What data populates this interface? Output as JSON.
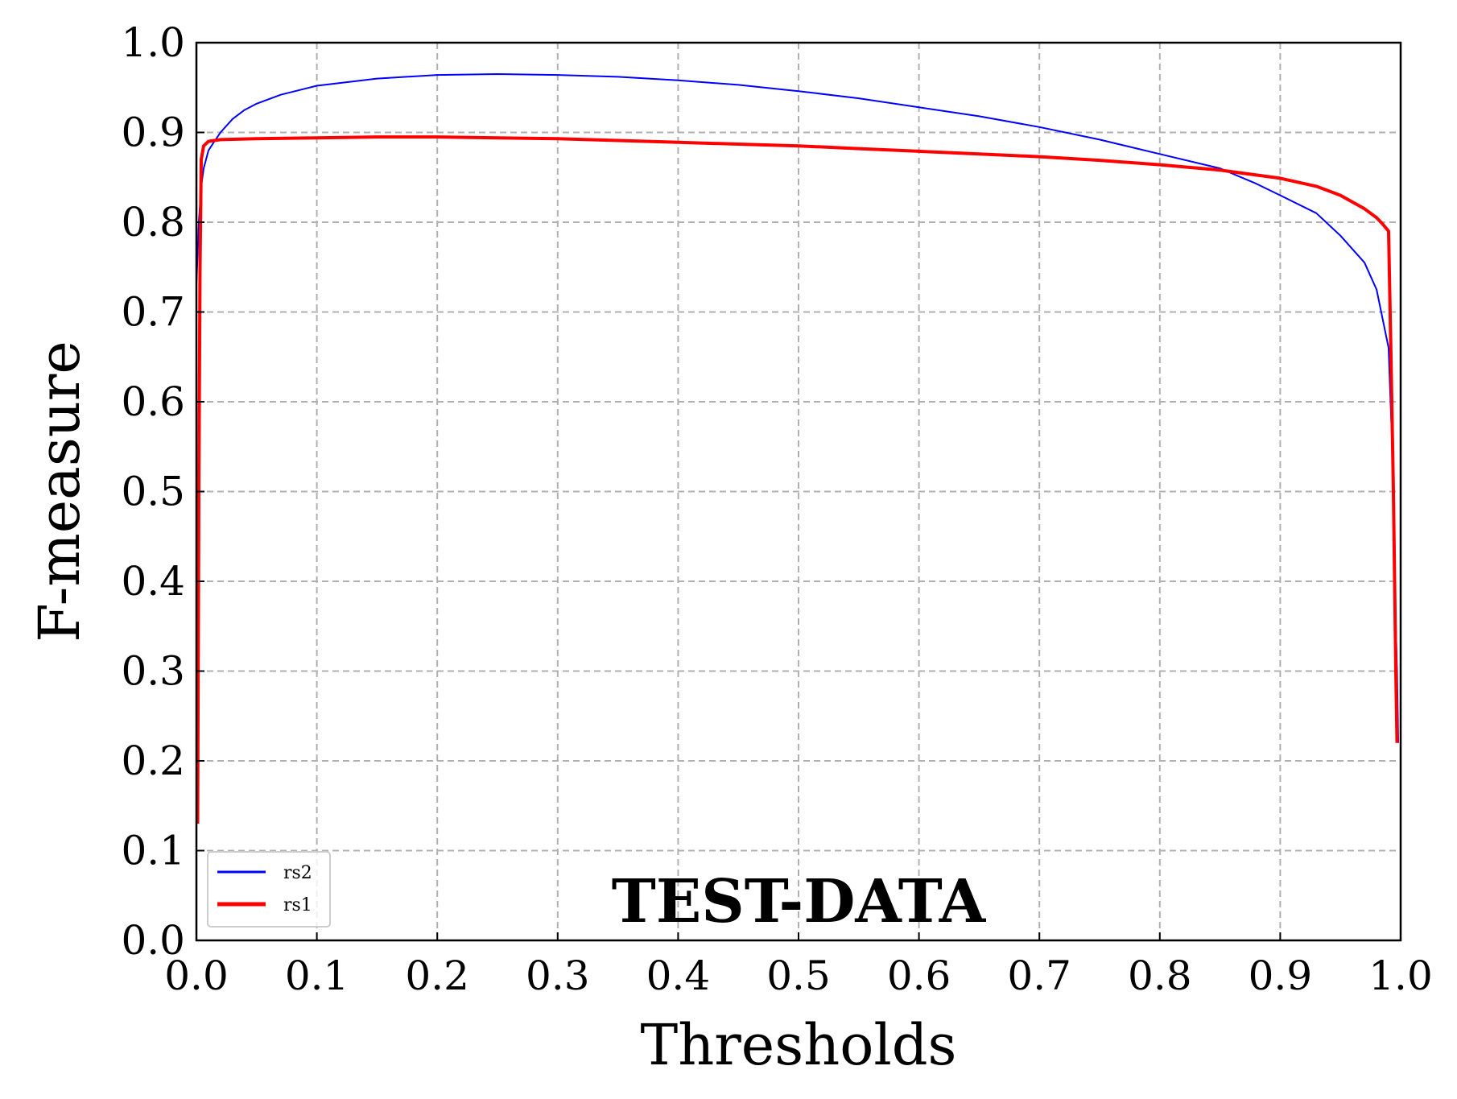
{
  "chart_data": {
    "type": "line",
    "title": "TEST-DATA",
    "xlabel": "Thresholds",
    "ylabel": "F-measure",
    "xlim": [
      0.0,
      1.0
    ],
    "ylim": [
      0.0,
      1.0
    ],
    "x_ticks": [
      "0.0",
      "0.1",
      "0.2",
      "0.3",
      "0.4",
      "0.5",
      "0.6",
      "0.7",
      "0.8",
      "0.9",
      "1.0"
    ],
    "y_ticks": [
      "0.0",
      "0.1",
      "0.2",
      "0.3",
      "0.4",
      "0.5",
      "0.6",
      "0.7",
      "0.8",
      "0.9",
      "1.0"
    ],
    "grid": true,
    "legend_position": "lower-left",
    "series": [
      {
        "name": "rs2",
        "color": "#0000ff",
        "line_width": 2,
        "x": [
          0.0,
          0.002,
          0.004,
          0.006,
          0.008,
          0.01,
          0.015,
          0.02,
          0.03,
          0.04,
          0.05,
          0.07,
          0.1,
          0.15,
          0.2,
          0.25,
          0.3,
          0.35,
          0.4,
          0.45,
          0.5,
          0.55,
          0.6,
          0.65,
          0.7,
          0.75,
          0.8,
          0.85,
          0.88,
          0.9,
          0.93,
          0.95,
          0.97,
          0.98,
          0.99,
          0.993,
          0.995,
          0.997,
          0.998
        ],
        "y": [
          0.73,
          0.8,
          0.84,
          0.86,
          0.87,
          0.88,
          0.89,
          0.9,
          0.915,
          0.925,
          0.932,
          0.942,
          0.952,
          0.96,
          0.964,
          0.965,
          0.964,
          0.962,
          0.958,
          0.953,
          0.946,
          0.938,
          0.928,
          0.918,
          0.906,
          0.892,
          0.876,
          0.86,
          0.843,
          0.83,
          0.81,
          0.785,
          0.755,
          0.725,
          0.66,
          0.55,
          0.4,
          0.3,
          0.22
        ]
      },
      {
        "name": "rs1",
        "color": "#ff0000",
        "line_width": 4,
        "x": [
          0.001,
          0.002,
          0.003,
          0.004,
          0.006,
          0.01,
          0.02,
          0.05,
          0.1,
          0.15,
          0.2,
          0.25,
          0.3,
          0.35,
          0.4,
          0.45,
          0.5,
          0.55,
          0.6,
          0.65,
          0.7,
          0.75,
          0.8,
          0.85,
          0.9,
          0.93,
          0.95,
          0.97,
          0.98,
          0.985,
          0.99,
          0.992,
          0.994,
          0.995,
          0.996,
          0.997
        ],
        "y": [
          0.13,
          0.5,
          0.75,
          0.87,
          0.885,
          0.89,
          0.892,
          0.893,
          0.894,
          0.895,
          0.895,
          0.894,
          0.893,
          0.891,
          0.889,
          0.887,
          0.885,
          0.882,
          0.879,
          0.876,
          0.873,
          0.869,
          0.864,
          0.858,
          0.849,
          0.84,
          0.83,
          0.815,
          0.805,
          0.798,
          0.79,
          0.65,
          0.5,
          0.4,
          0.3,
          0.22
        ]
      }
    ]
  }
}
